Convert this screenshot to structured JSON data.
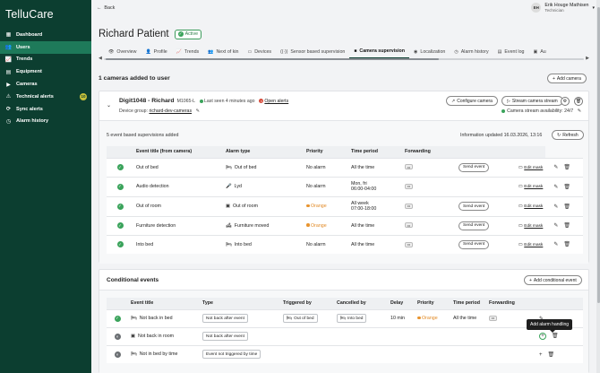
{
  "app": {
    "name": "TelluCare"
  },
  "sidebar": {
    "items": [
      {
        "label": "Dashboard",
        "icon": "dashboard-icon"
      },
      {
        "label": "Users",
        "icon": "users-icon",
        "active": true
      },
      {
        "label": "Trends",
        "icon": "trends-icon"
      },
      {
        "label": "Equipment",
        "icon": "equipment-icon"
      },
      {
        "label": "Cameras",
        "icon": "camera-icon"
      },
      {
        "label": "Technical alerts",
        "icon": "alert-icon",
        "badge": "10"
      },
      {
        "label": "Sync alerts",
        "icon": "sync-icon"
      },
      {
        "label": "Alarm history",
        "icon": "history-icon"
      }
    ]
  },
  "header": {
    "back_label": "Back",
    "user_initials": "EH",
    "user_name": "Erik Houge Mathisen",
    "user_role": "Technician"
  },
  "patient": {
    "name": "Richard Patient",
    "status": "Active"
  },
  "tabs": [
    {
      "label": "Overview"
    },
    {
      "label": "Profile"
    },
    {
      "label": "Trends"
    },
    {
      "label": "Next of kin"
    },
    {
      "label": "Devices"
    },
    {
      "label": "Sensor based supervision"
    },
    {
      "label": "Camera supervision",
      "active": true
    },
    {
      "label": "Localization"
    },
    {
      "label": "Alarm history"
    },
    {
      "label": "Event log"
    },
    {
      "label": "Au"
    }
  ],
  "cameras_section": {
    "title": "1 cameras added to user",
    "add_label": "Add camera"
  },
  "camera": {
    "name": "Digit1048 - Richard",
    "model": "M1065-L",
    "last_seen": "Last seen 4 minutes ago",
    "open_alerts": "Open alerts",
    "device_group_label": "Device group:",
    "device_group": "richard-dev-cameras",
    "configure_label": "Configure camera",
    "stream_label": "Stream camera stream",
    "stream_availability": "Camera stream availability: 24/7"
  },
  "event_section": {
    "count_label": "5 event based supervisions added",
    "updated": "Information updated 16.03.2026, 13:16",
    "refresh_label": "Refresh",
    "columns": [
      "Event title (from camera)",
      "Alarm type",
      "Priority",
      "Time period",
      "Forwarding"
    ],
    "rows": [
      {
        "title": "Out of bed",
        "alarm": "Out of bed",
        "priority": "No alarm",
        "period": "All the time",
        "send": "Send event",
        "edit": "Edit mask"
      },
      {
        "title": "Audio detection",
        "alarm": "Lyd",
        "priority": "No alarm",
        "period": "Mon, fri",
        "period2": "06:00-04:00",
        "send": "",
        "edit": "Edit mask"
      },
      {
        "title": "Out of room",
        "alarm": "Out of room",
        "priority": "Orange",
        "period": "All week",
        "period2": "07:00-18:00",
        "send": "Send event",
        "edit": "Edit mask"
      },
      {
        "title": "Furniture detection",
        "alarm": "Furniture moved",
        "priority": "Orange",
        "period": "All the time",
        "send": "Send event",
        "edit": "Edit mask"
      },
      {
        "title": "Into bed",
        "alarm": "Into bed",
        "priority": "No alarm",
        "period": "All the time",
        "send": "Send event",
        "edit": "Edit mask"
      }
    ]
  },
  "conditional_section": {
    "title": "Conditional events",
    "add_label": "Add conditional event",
    "columns": [
      "Event title",
      "Type",
      "Triggered by",
      "Cancelled by",
      "Delay",
      "Priority",
      "Time period",
      "Forwarding"
    ],
    "rows": [
      {
        "status": "active",
        "title": "Not back in bed",
        "type": "Not back after event",
        "triggered": "Out of bed",
        "cancelled": "Into bed",
        "delay": "10 min",
        "priority": "Orange",
        "period": "All the time"
      },
      {
        "status": "inactive",
        "title": "Not back in room",
        "type": "Not back after event",
        "triggered": "",
        "cancelled": "",
        "delay": "",
        "priority": "",
        "period": ""
      },
      {
        "status": "inactive",
        "title": "Not in bed by time",
        "type": "Event not triggered by time",
        "triggered": "",
        "cancelled": "",
        "delay": "",
        "priority": "",
        "period": ""
      }
    ]
  },
  "tooltip": {
    "text": "Add alarm handling"
  }
}
